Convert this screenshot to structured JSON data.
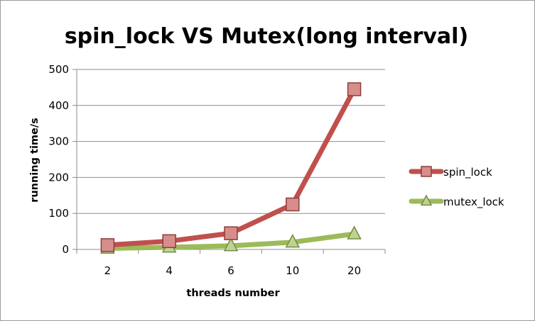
{
  "chart_data": {
    "type": "line",
    "title": "spin_lock VS Mutex(long interval)",
    "xlabel": "threads number",
    "ylabel": "running time/s",
    "categories": [
      "2",
      "4",
      "6",
      "10",
      "20"
    ],
    "ylim": [
      0,
      500
    ],
    "yticks": [
      "0",
      "100",
      "200",
      "300",
      "400",
      "500"
    ],
    "grid": true,
    "legend_position": "right",
    "series": [
      {
        "name": "spin_lock",
        "values": [
          12,
          23,
          45,
          125,
          445
        ],
        "color": "#c0504d",
        "marker": "square"
      },
      {
        "name": "mutex_lock",
        "values": [
          3,
          6,
          10,
          20,
          43
        ],
        "color": "#9bbb59",
        "marker": "triangle"
      }
    ]
  }
}
